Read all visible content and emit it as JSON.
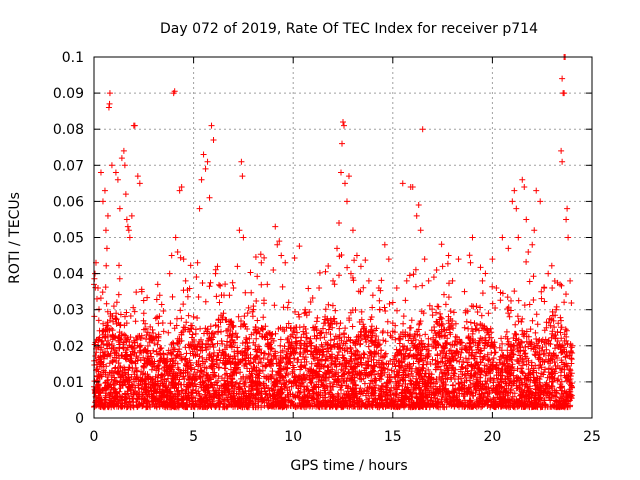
{
  "chart_data": {
    "type": "scatter",
    "title": "Day 072 of 2019, Rate Of TEC Index for receiver p714",
    "xlabel": "GPS time / hours",
    "ylabel": "ROTI / TECUs",
    "xlim": [
      0,
      25
    ],
    "ylim": [
      0,
      0.1
    ],
    "x_ticks": [
      0,
      5,
      10,
      15,
      20,
      25
    ],
    "x_tick_labels": [
      "0",
      "5",
      "10",
      "15",
      "20",
      "25"
    ],
    "y_ticks": [
      0,
      0.01,
      0.02,
      0.03,
      0.04,
      0.05,
      0.06,
      0.07,
      0.08,
      0.09,
      0.1
    ],
    "y_tick_labels": [
      "0",
      "0.01",
      "0.02",
      "0.03",
      "0.04",
      "0.05",
      "0.06",
      "0.07",
      "0.08",
      "0.09",
      "0.1"
    ],
    "grid": true,
    "marker": "+",
    "color": "#ff0000",
    "series": [
      {
        "name": "p714",
        "points": [
          [
            0.0,
            0.037
          ],
          [
            0.05,
            0.04
          ],
          [
            0.1,
            0.043
          ],
          [
            0.15,
            0.033
          ],
          [
            0.2,
            0.036
          ],
          [
            0.35,
            0.068
          ],
          [
            0.45,
            0.06
          ],
          [
            0.55,
            0.063
          ],
          [
            0.6,
            0.052
          ],
          [
            0.65,
            0.047
          ],
          [
            0.7,
            0.056
          ],
          [
            0.75,
            0.086
          ],
          [
            0.78,
            0.087
          ],
          [
            0.8,
            0.09
          ],
          [
            0.9,
            0.07
          ],
          [
            1.0,
            0.031
          ],
          [
            1.1,
            0.068
          ],
          [
            1.2,
            0.066
          ],
          [
            1.3,
            0.058
          ],
          [
            1.4,
            0.072
          ],
          [
            1.5,
            0.074
          ],
          [
            1.55,
            0.07
          ],
          [
            1.6,
            0.062
          ],
          [
            1.65,
            0.055
          ],
          [
            1.7,
            0.053
          ],
          [
            1.75,
            0.052
          ],
          [
            1.8,
            0.05
          ],
          [
            1.9,
            0.056
          ],
          [
            2.0,
            0.081
          ],
          [
            2.05,
            0.081
          ],
          [
            2.2,
            0.067
          ],
          [
            2.3,
            0.065
          ],
          [
            2.4,
            0.035
          ],
          [
            2.5,
            0.029
          ],
          [
            2.8,
            0.021
          ],
          [
            3.2,
            0.037
          ],
          [
            3.3,
            0.034
          ],
          [
            3.5,
            0.024
          ],
          [
            3.8,
            0.04
          ],
          [
            3.9,
            0.045
          ],
          [
            4.0,
            0.09
          ],
          [
            4.05,
            0.0905
          ],
          [
            4.1,
            0.05
          ],
          [
            4.2,
            0.046
          ],
          [
            4.3,
            0.063
          ],
          [
            4.4,
            0.064
          ],
          [
            4.5,
            0.044
          ],
          [
            4.6,
            0.038
          ],
          [
            4.8,
            0.016
          ],
          [
            5.0,
            0.028
          ],
          [
            5.2,
            0.043
          ],
          [
            5.3,
            0.058
          ],
          [
            5.4,
            0.066
          ],
          [
            5.5,
            0.073
          ],
          [
            5.6,
            0.069
          ],
          [
            5.7,
            0.071
          ],
          [
            5.8,
            0.061
          ],
          [
            5.9,
            0.081
          ],
          [
            6.0,
            0.077
          ],
          [
            6.1,
            0.04
          ],
          [
            6.2,
            0.042
          ],
          [
            6.3,
            0.032
          ],
          [
            6.5,
            0.029
          ],
          [
            6.8,
            0.034
          ],
          [
            7.0,
            0.036
          ],
          [
            7.2,
            0.042
          ],
          [
            7.3,
            0.052
          ],
          [
            7.4,
            0.071
          ],
          [
            7.45,
            0.067
          ],
          [
            7.5,
            0.05
          ],
          [
            7.6,
            0.021
          ],
          [
            8.0,
            0.031
          ],
          [
            8.2,
            0.027
          ],
          [
            8.4,
            0.043
          ],
          [
            8.7,
            0.037
          ],
          [
            9.0,
            0.041
          ],
          [
            9.1,
            0.053
          ],
          [
            9.2,
            0.048
          ],
          [
            9.3,
            0.049
          ],
          [
            9.4,
            0.045
          ],
          [
            9.6,
            0.043
          ],
          [
            10.0,
            0.018
          ],
          [
            10.3,
            0.028
          ],
          [
            10.6,
            0.03
          ],
          [
            11.0,
            0.025
          ],
          [
            11.3,
            0.036
          ],
          [
            11.6,
            0.028
          ],
          [
            12.0,
            0.038
          ],
          [
            12.2,
            0.047
          ],
          [
            12.3,
            0.054
          ],
          [
            12.4,
            0.068
          ],
          [
            12.45,
            0.076
          ],
          [
            12.5,
            0.082
          ],
          [
            12.55,
            0.081
          ],
          [
            12.6,
            0.065
          ],
          [
            12.7,
            0.06
          ],
          [
            12.8,
            0.067
          ],
          [
            12.9,
            0.04
          ],
          [
            13.0,
            0.052
          ],
          [
            13.2,
            0.045
          ],
          [
            13.4,
            0.042
          ],
          [
            13.8,
            0.038
          ],
          [
            14.0,
            0.034
          ],
          [
            14.3,
            0.036
          ],
          [
            14.6,
            0.048
          ],
          [
            14.8,
            0.044
          ],
          [
            15.0,
            0.032
          ],
          [
            15.2,
            0.036
          ],
          [
            15.5,
            0.065
          ],
          [
            15.7,
            0.038
          ],
          [
            15.9,
            0.064
          ],
          [
            16.0,
            0.064
          ],
          [
            16.2,
            0.056
          ],
          [
            16.3,
            0.059
          ],
          [
            16.4,
            0.052
          ],
          [
            16.5,
            0.08
          ],
          [
            16.6,
            0.044
          ],
          [
            16.8,
            0.038
          ],
          [
            17.2,
            0.041
          ],
          [
            17.5,
            0.042
          ],
          [
            17.8,
            0.045
          ],
          [
            18.0,
            0.038
          ],
          [
            18.3,
            0.044
          ],
          [
            18.6,
            0.035
          ],
          [
            18.9,
            0.043
          ],
          [
            19.0,
            0.05
          ],
          [
            19.2,
            0.031
          ],
          [
            19.5,
            0.038
          ],
          [
            19.8,
            0.029
          ],
          [
            20.0,
            0.044
          ],
          [
            20.2,
            0.036
          ],
          [
            20.5,
            0.05
          ],
          [
            20.8,
            0.047
          ],
          [
            21.0,
            0.06
          ],
          [
            21.1,
            0.063
          ],
          [
            21.2,
            0.058
          ],
          [
            21.3,
            0.05
          ],
          [
            21.5,
            0.066
          ],
          [
            21.6,
            0.064
          ],
          [
            21.7,
            0.055
          ],
          [
            21.8,
            0.046
          ],
          [
            22.0,
            0.048
          ],
          [
            22.1,
            0.052
          ],
          [
            22.2,
            0.063
          ],
          [
            22.4,
            0.06
          ],
          [
            22.6,
            0.036
          ],
          [
            22.8,
            0.04
          ],
          [
            23.0,
            0.036
          ],
          [
            23.2,
            0.03
          ],
          [
            23.4,
            0.037
          ],
          [
            23.45,
            0.074
          ],
          [
            23.5,
            0.071
          ],
          [
            23.5,
            0.094
          ],
          [
            23.55,
            0.09
          ],
          [
            23.6,
            0.09
          ],
          [
            23.6,
            0.1
          ],
          [
            23.65,
            0.1
          ],
          [
            23.7,
            0.055
          ],
          [
            23.75,
            0.058
          ],
          [
            23.8,
            0.05
          ],
          [
            23.9,
            0.038
          ],
          [
            24.0,
            0.02
          ]
        ]
      }
    ]
  }
}
